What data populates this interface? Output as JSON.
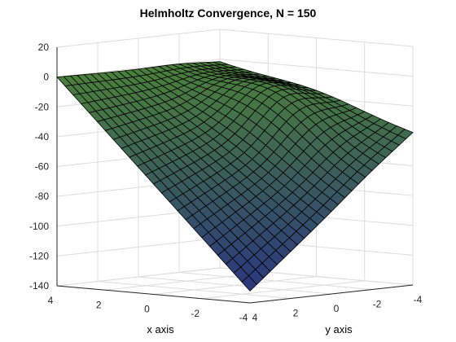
{
  "chart_data": {
    "type": "surface",
    "title": "Helmholtz Convergence, N = 150",
    "xlabel": "x axis",
    "ylabel": "y axis",
    "zlabel": "",
    "xlim": [
      -4,
      4
    ],
    "ylim": [
      -4,
      4
    ],
    "zlim": [
      -140,
      20
    ],
    "xticks": [
      "4",
      "2",
      "0",
      "-2",
      "-4"
    ],
    "yticks": [
      "4",
      "2",
      "0",
      "-2",
      "-4"
    ],
    "zticks": [
      "20",
      "0",
      "-20",
      "-40",
      "-60",
      "-80",
      "-100",
      "-120",
      "-140"
    ],
    "grid": true,
    "colormap": "dark blue-green-yellow (parula-like), black mesh edges",
    "surface_corner_values": {
      "x4_y4": 0,
      "x4_y-4": -2,
      "x-4_y-4": -38,
      "x-4_y4": -132
    },
    "surface_peak": {
      "x": 0,
      "y": -2,
      "z": 8
    }
  }
}
